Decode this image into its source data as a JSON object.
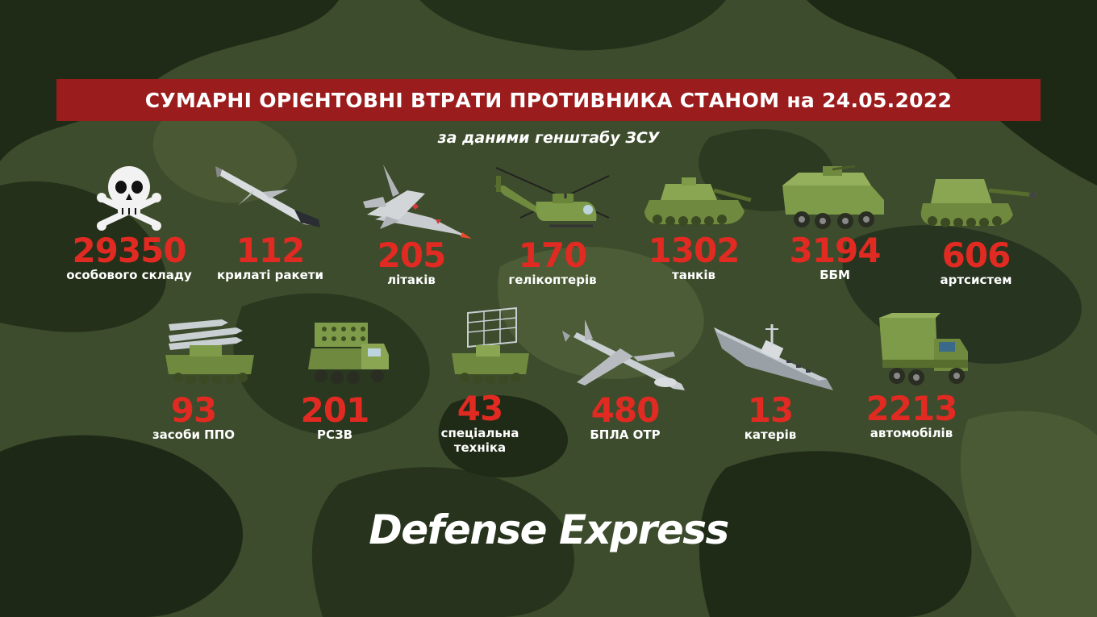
{
  "header": {
    "title": "СУМАРНІ ОРІЄНТОВНІ ВТРАТИ ПРОТИВНИКА СТАНОМ на 24.05.2022",
    "subtitle": "за даними генштабу ЗСУ"
  },
  "colors": {
    "title_bar": "#9b1c1c",
    "number": "#e02a22",
    "camo_base": "#3a4a2a"
  },
  "items": [
    {
      "icon": "skull-crossbones-icon",
      "value": "29350",
      "label": "особового складу"
    },
    {
      "icon": "cruise-missile-icon",
      "value": "112",
      "label": "крилаті ракети"
    },
    {
      "icon": "fighter-jet-icon",
      "value": "205",
      "label": "літаків"
    },
    {
      "icon": "helicopter-icon",
      "value": "170",
      "label": "гелікоптерів"
    },
    {
      "icon": "tank-icon",
      "value": "1302",
      "label": "танків"
    },
    {
      "icon": "armored-vehicle-icon",
      "value": "3194",
      "label": "ББМ"
    },
    {
      "icon": "artillery-icon",
      "value": "606",
      "label": "артсистем"
    },
    {
      "icon": "air-defense-icon",
      "value": "93",
      "label": "засоби ППО"
    },
    {
      "icon": "mlrs-icon",
      "value": "201",
      "label": "РСЗВ"
    },
    {
      "icon": "radar-vehicle-icon",
      "value": "43",
      "label": "спеціальна техніка"
    },
    {
      "icon": "drone-icon",
      "value": "480",
      "label": "БПЛА ОТР"
    },
    {
      "icon": "boat-icon",
      "value": "13",
      "label": "катерів"
    },
    {
      "icon": "truck-icon",
      "value": "2213",
      "label": "автомобілів"
    }
  ],
  "logo": "Defense Express"
}
